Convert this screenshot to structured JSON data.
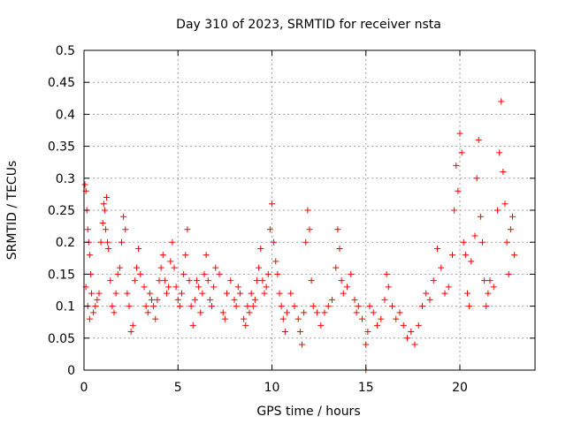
{
  "chart_data": {
    "type": "scatter",
    "title": "Day 310 of 2023, SRMTID for receiver nsta",
    "xlabel": "GPS time / hours",
    "ylabel": "SRMTID / TECUs",
    "xlim": [
      0,
      24
    ],
    "ylim": [
      0,
      0.5
    ],
    "xticks": [
      0,
      5,
      10,
      15,
      20
    ],
    "xtick_labels": [
      "0",
      "5",
      "10",
      "15",
      "20"
    ],
    "yticks": [
      0,
      0.05,
      0.1,
      0.15,
      0.2,
      0.25,
      0.3,
      0.35,
      0.4,
      0.45,
      0.5
    ],
    "ytick_labels": [
      "0",
      "0.05",
      "0.1",
      "0.15",
      "0.2",
      "0.25",
      "0.3",
      "0.35",
      "0.4",
      "0.45",
      "0.5"
    ],
    "grid": true,
    "marker": "plus",
    "colors": {
      "points": "#ff0000",
      "grid": "#a0a0a0",
      "axis": "#000000"
    },
    "series": [
      {
        "name": "SRMTID",
        "points": [
          [
            0.05,
            0.29
          ],
          [
            0.1,
            0.28
          ],
          [
            0.15,
            0.25
          ],
          [
            0.2,
            0.22
          ],
          [
            0.25,
            0.2
          ],
          [
            0.3,
            0.18
          ],
          [
            0.35,
            0.15
          ],
          [
            0.1,
            0.13
          ],
          [
            0.2,
            0.1
          ],
          [
            0.3,
            0.08
          ],
          [
            0.4,
            0.12
          ],
          [
            0.5,
            0.09
          ],
          [
            0.6,
            0.1
          ],
          [
            0.7,
            0.11
          ],
          [
            0.8,
            0.12
          ],
          [
            0.9,
            0.2
          ],
          [
            1.0,
            0.23
          ],
          [
            1.05,
            0.26
          ],
          [
            1.1,
            0.25
          ],
          [
            1.15,
            0.22
          ],
          [
            1.2,
            0.27
          ],
          [
            1.25,
            0.2
          ],
          [
            1.3,
            0.19
          ],
          [
            1.4,
            0.14
          ],
          [
            1.5,
            0.1
          ],
          [
            1.6,
            0.09
          ],
          [
            1.7,
            0.12
          ],
          [
            1.8,
            0.15
          ],
          [
            1.9,
            0.16
          ],
          [
            2.0,
            0.2
          ],
          [
            2.1,
            0.24
          ],
          [
            2.2,
            0.22
          ],
          [
            2.3,
            0.12
          ],
          [
            2.4,
            0.1
          ],
          [
            2.5,
            0.06
          ],
          [
            2.6,
            0.07
          ],
          [
            2.7,
            0.14
          ],
          [
            2.8,
            0.16
          ],
          [
            2.9,
            0.19
          ],
          [
            3.0,
            0.15
          ],
          [
            3.2,
            0.13
          ],
          [
            3.3,
            0.1
          ],
          [
            3.4,
            0.09
          ],
          [
            3.5,
            0.12
          ],
          [
            3.6,
            0.11
          ],
          [
            3.7,
            0.1
          ],
          [
            3.8,
            0.08
          ],
          [
            3.9,
            0.11
          ],
          [
            4.0,
            0.14
          ],
          [
            4.1,
            0.16
          ],
          [
            4.2,
            0.18
          ],
          [
            4.3,
            0.14
          ],
          [
            4.4,
            0.12
          ],
          [
            4.5,
            0.13
          ],
          [
            4.6,
            0.17
          ],
          [
            4.7,
            0.2
          ],
          [
            4.8,
            0.16
          ],
          [
            4.9,
            0.13
          ],
          [
            5.0,
            0.11
          ],
          [
            5.1,
            0.1
          ],
          [
            5.2,
            0.12
          ],
          [
            5.3,
            0.15
          ],
          [
            5.4,
            0.18
          ],
          [
            5.5,
            0.22
          ],
          [
            5.6,
            0.14
          ],
          [
            5.7,
            0.1
          ],
          [
            5.8,
            0.07
          ],
          [
            5.9,
            0.11
          ],
          [
            6.0,
            0.14
          ],
          [
            6.1,
            0.13
          ],
          [
            6.2,
            0.09
          ],
          [
            6.3,
            0.12
          ],
          [
            6.4,
            0.15
          ],
          [
            6.5,
            0.18
          ],
          [
            6.6,
            0.14
          ],
          [
            6.7,
            0.11
          ],
          [
            6.8,
            0.1
          ],
          [
            6.9,
            0.13
          ],
          [
            7.0,
            0.16
          ],
          [
            7.2,
            0.15
          ],
          [
            7.4,
            0.09
          ],
          [
            7.5,
            0.08
          ],
          [
            7.6,
            0.12
          ],
          [
            7.8,
            0.14
          ],
          [
            8.0,
            0.11
          ],
          [
            8.1,
            0.1
          ],
          [
            8.2,
            0.13
          ],
          [
            8.3,
            0.12
          ],
          [
            8.5,
            0.08
          ],
          [
            8.6,
            0.07
          ],
          [
            8.7,
            0.1
          ],
          [
            8.8,
            0.09
          ],
          [
            8.9,
            0.12
          ],
          [
            9.0,
            0.1
          ],
          [
            9.1,
            0.11
          ],
          [
            9.2,
            0.14
          ],
          [
            9.3,
            0.16
          ],
          [
            9.4,
            0.19
          ],
          [
            9.5,
            0.14
          ],
          [
            9.6,
            0.12
          ],
          [
            9.7,
            0.13
          ],
          [
            9.8,
            0.15
          ],
          [
            9.9,
            0.22
          ],
          [
            10.0,
            0.26
          ],
          [
            10.1,
            0.2
          ],
          [
            10.2,
            0.17
          ],
          [
            10.3,
            0.15
          ],
          [
            10.4,
            0.12
          ],
          [
            10.5,
            0.1
          ],
          [
            10.6,
            0.08
          ],
          [
            10.7,
            0.06
          ],
          [
            10.8,
            0.09
          ],
          [
            11.0,
            0.12
          ],
          [
            11.2,
            0.1
          ],
          [
            11.4,
            0.08
          ],
          [
            11.5,
            0.06
          ],
          [
            11.6,
            0.04
          ],
          [
            11.7,
            0.09
          ],
          [
            11.8,
            0.2
          ],
          [
            11.9,
            0.25
          ],
          [
            12.0,
            0.22
          ],
          [
            12.1,
            0.14
          ],
          [
            12.2,
            0.1
          ],
          [
            12.4,
            0.09
          ],
          [
            12.6,
            0.07
          ],
          [
            12.8,
            0.09
          ],
          [
            13.0,
            0.1
          ],
          [
            13.2,
            0.11
          ],
          [
            13.4,
            0.16
          ],
          [
            13.5,
            0.22
          ],
          [
            13.6,
            0.19
          ],
          [
            13.7,
            0.14
          ],
          [
            13.8,
            0.12
          ],
          [
            14.0,
            0.13
          ],
          [
            14.2,
            0.15
          ],
          [
            14.4,
            0.11
          ],
          [
            14.5,
            0.09
          ],
          [
            14.6,
            0.1
          ],
          [
            14.8,
            0.08
          ],
          [
            15.0,
            0.04
          ],
          [
            15.0,
            0.0
          ],
          [
            15.1,
            0.06
          ],
          [
            15.2,
            0.1
          ],
          [
            15.4,
            0.09
          ],
          [
            15.6,
            0.07
          ],
          [
            15.8,
            0.08
          ],
          [
            16.0,
            0.11
          ],
          [
            16.1,
            0.15
          ],
          [
            16.2,
            0.13
          ],
          [
            16.4,
            0.1
          ],
          [
            16.6,
            0.08
          ],
          [
            16.8,
            0.09
          ],
          [
            17.0,
            0.07
          ],
          [
            17.2,
            0.05
          ],
          [
            17.4,
            0.06
          ],
          [
            17.6,
            0.04
          ],
          [
            17.8,
            0.07
          ],
          [
            18.0,
            0.1
          ],
          [
            18.2,
            0.12
          ],
          [
            18.4,
            0.11
          ],
          [
            18.6,
            0.14
          ],
          [
            18.8,
            0.19
          ],
          [
            19.0,
            0.16
          ],
          [
            19.2,
            0.12
          ],
          [
            19.4,
            0.13
          ],
          [
            19.6,
            0.18
          ],
          [
            19.7,
            0.25
          ],
          [
            19.8,
            0.32
          ],
          [
            19.9,
            0.28
          ],
          [
            20.0,
            0.37
          ],
          [
            20.1,
            0.34
          ],
          [
            20.2,
            0.2
          ],
          [
            20.3,
            0.18
          ],
          [
            20.4,
            0.12
          ],
          [
            20.5,
            0.1
          ],
          [
            20.6,
            0.17
          ],
          [
            20.8,
            0.21
          ],
          [
            20.9,
            0.3
          ],
          [
            21.0,
            0.36
          ],
          [
            21.1,
            0.24
          ],
          [
            21.2,
            0.2
          ],
          [
            21.3,
            0.14
          ],
          [
            21.4,
            0.1
          ],
          [
            21.5,
            0.12
          ],
          [
            21.6,
            0.14
          ],
          [
            21.8,
            0.13
          ],
          [
            22.0,
            0.25
          ],
          [
            22.1,
            0.34
          ],
          [
            22.2,
            0.42
          ],
          [
            22.3,
            0.31
          ],
          [
            22.4,
            0.26
          ],
          [
            22.5,
            0.2
          ],
          [
            22.6,
            0.15
          ],
          [
            22.7,
            0.22
          ],
          [
            22.8,
            0.24
          ],
          [
            22.9,
            0.18
          ]
        ]
      }
    ]
  }
}
